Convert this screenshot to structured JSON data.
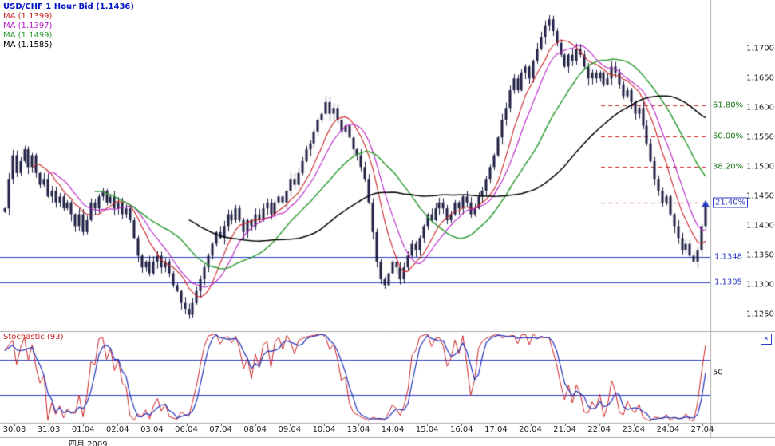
{
  "header": {
    "title": "USD/CHF 1 Hour Bid (1.1436)",
    "ma_legend": [
      {
        "label": "MA (1.1399)",
        "color": "#cc2222"
      },
      {
        "label": "MA (1.1397)",
        "color": "#b822c8"
      },
      {
        "label": "MA (1.1499)",
        "color": "#2f9e33"
      },
      {
        "label": "MA (1.1585)",
        "color": "#000000"
      }
    ]
  },
  "chart_data": {
    "type": "candlestick",
    "instrument": "USD/CHF",
    "timeframe": "1 Hour Bid",
    "last_price": 1.1436,
    "candle_color": "#1f1f45",
    "y_axis": {
      "ylim": [
        1.1225,
        1.178
      ],
      "ticks": [
        1.17,
        1.165,
        1.16,
        1.155,
        1.15,
        1.145,
        1.14,
        1.135,
        1.13,
        1.125
      ],
      "tick_labels": [
        "1.1700",
        "1.1650",
        "1.1600",
        "1.1550",
        "1.1500",
        "1.1450",
        "1.1400",
        "1.1350",
        "1.1300",
        "1.1250"
      ]
    },
    "x_axis": {
      "labels": [
        "30.03",
        "31.03",
        "01.04",
        "02.04",
        "03.04",
        "06.04",
        "07.04",
        "08.04",
        "09.04",
        "10.04",
        "13.04",
        "14.04",
        "15.04",
        "16.04",
        "17.04",
        "20.04",
        "21.04",
        "22.04",
        "23.04",
        "24.04",
        "27.04"
      ],
      "month_label": "四月 2009"
    },
    "closes_x10000": [
      11430,
      11480,
      11520,
      11490,
      11510,
      11530,
      11500,
      11520,
      11490,
      11470,
      11480,
      11450,
      11460,
      11440,
      11450,
      11430,
      11440,
      11420,
      11400,
      11420,
      11390,
      11410,
      11440,
      11430,
      11450,
      11460,
      11440,
      11450,
      11430,
      11440,
      11420,
      11430,
      11410,
      11380,
      11350,
      11330,
      11340,
      11320,
      11340,
      11350,
      11330,
      11340,
      11320,
      11300,
      11290,
      11270,
      11260,
      11250,
      11270,
      11290,
      11310,
      11330,
      11350,
      11370,
      11390,
      11380,
      11400,
      11420,
      11410,
      11430,
      11410,
      11390,
      11410,
      11400,
      11420,
      11410,
      11430,
      11440,
      11420,
      11440,
      11450,
      11440,
      11460,
      11480,
      11470,
      11490,
      11510,
      11530,
      11540,
      11560,
      11580,
      11590,
      11610,
      11590,
      11600,
      11580,
      11560,
      11570,
      11550,
      11530,
      11520,
      11500,
      11480,
      11440,
      11390,
      11340,
      11310,
      11300,
      11320,
      11340,
      11330,
      11310,
      11330,
      11350,
      11370,
      11360,
      11380,
      11400,
      11420,
      11410,
      11430,
      11440,
      11430,
      11410,
      11420,
      11440,
      11430,
      11450,
      11440,
      11420,
      11430,
      11450,
      11460,
      11480,
      11500,
      11520,
      11550,
      11580,
      11600,
      11630,
      11650,
      11630,
      11660,
      11670,
      11650,
      11680,
      11700,
      11720,
      11740,
      11750,
      11730,
      11710,
      11690,
      11670,
      11690,
      11680,
      11700,
      11690,
      11670,
      11650,
      11660,
      11650,
      11660,
      11640,
      11650,
      11670,
      11660,
      11640,
      11620,
      11630,
      11610,
      11590,
      11600,
      11570,
      11540,
      11510,
      11480,
      11460,
      11440,
      11450,
      11420,
      11400,
      11380,
      11360,
      11370,
      11350,
      11340,
      11360,
      11400,
      11436
    ],
    "moving_averages": [
      {
        "legend": "MA (1.1399)",
        "window": 8,
        "color": "#cc2222"
      },
      {
        "legend": "MA (1.1397)",
        "window": 12,
        "color": "#b822c8"
      },
      {
        "legend": "MA (1.1499)",
        "window": 24,
        "color": "#2f9e33"
      },
      {
        "legend": "MA (1.1585)",
        "window": 48,
        "color": "#000000"
      }
    ],
    "support_lines": [
      {
        "price": 1.1348,
        "label": "1.1348"
      },
      {
        "price": 1.1305,
        "label": "1.1305"
      }
    ],
    "support_color": "#2b3cc4",
    "fibonacci": {
      "line_color": "#cc2222",
      "label_color": "#1a7a1a",
      "levels": [
        {
          "pct": "61.80%",
          "price": 1.1605,
          "highlight": false
        },
        {
          "pct": "50.00%",
          "price": 1.1552,
          "highlight": false
        },
        {
          "pct": "38.20%",
          "price": 1.15,
          "highlight": false
        },
        {
          "pct": "21.40%",
          "price": 1.144,
          "highlight": true
        }
      ]
    },
    "stochastic": {
      "label": "Stochastic (93)",
      "close_icon": "✕",
      "k_period": 10,
      "d_period": 3,
      "k_color": "#cc2222",
      "d_color": "#2233bb",
      "gridlines": [
        70,
        30
      ],
      "grid_color": "#2b3cc4",
      "mid_label": "50",
      "range": [
        0,
        100
      ]
    }
  }
}
